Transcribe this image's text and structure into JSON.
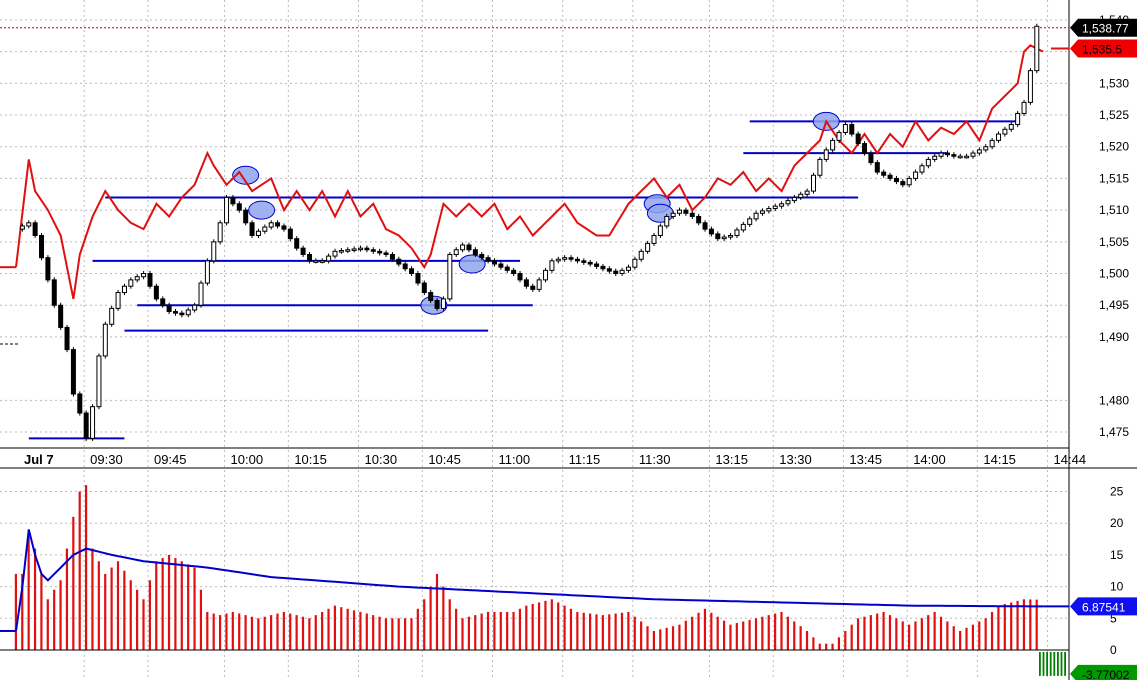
{
  "chart_data": [
    {
      "type": "candlestick",
      "x_labels": [
        "Jul 7",
        "09:30",
        "09:45",
        "10:00",
        "10:15",
        "10:30",
        "10:45",
        "11:00",
        "11:15",
        "11:30",
        "13:15",
        "13:30",
        "13:45",
        "14:00",
        "14:15",
        "14:44"
      ],
      "y_ticks": [
        "1,475",
        "1,480",
        "1,490",
        "1,495",
        "1,500",
        "1,505",
        "1,510",
        "1,515",
        "1,520",
        "1,525",
        "1,530",
        "1,535",
        "1,540"
      ],
      "ylim": [
        1471,
        1540.5
      ],
      "grid": true,
      "price_series_anchors": [
        [
          0,
          1507
        ],
        [
          2,
          1508
        ],
        [
          3,
          1506
        ],
        [
          5,
          1499
        ],
        [
          6,
          1495
        ],
        [
          8,
          1488
        ],
        [
          9,
          1481
        ],
        [
          10,
          1478
        ],
        [
          11,
          1474
        ],
        [
          12,
          1479
        ],
        [
          13,
          1487
        ],
        [
          14,
          1492
        ],
        [
          16,
          1497
        ],
        [
          18,
          1499
        ],
        [
          20,
          1500
        ],
        [
          22,
          1496
        ],
        [
          24,
          1494
        ],
        [
          26,
          1493.5
        ],
        [
          28,
          1495
        ],
        [
          30,
          1502
        ],
        [
          32,
          1508
        ],
        [
          33,
          1512
        ],
        [
          35,
          1510
        ],
        [
          37,
          1506
        ],
        [
          40,
          1508
        ],
        [
          42,
          1507
        ],
        [
          44,
          1504
        ],
        [
          46,
          1502
        ],
        [
          48,
          1502
        ],
        [
          50,
          1503.5
        ],
        [
          54,
          1504
        ],
        [
          58,
          1503
        ],
        [
          62,
          1500
        ],
        [
          64,
          1497
        ],
        [
          66,
          1494.5
        ],
        [
          67,
          1496
        ],
        [
          68,
          1503
        ],
        [
          70,
          1504.5
        ],
        [
          72,
          1503
        ],
        [
          74,
          1502
        ],
        [
          76,
          1501
        ],
        [
          78,
          1500
        ],
        [
          80,
          1498
        ],
        [
          81,
          1497.5
        ],
        [
          82,
          1499
        ],
        [
          84,
          1502
        ],
        [
          86,
          1502.5
        ],
        [
          90,
          1501.5
        ],
        [
          94,
          1500
        ],
        [
          96,
          1501
        ],
        [
          100,
          1506
        ],
        [
          102,
          1509
        ],
        [
          104,
          1510
        ],
        [
          106,
          1509
        ],
        [
          108,
          1507
        ],
        [
          110,
          1505.5
        ],
        [
          112,
          1506
        ],
        [
          116,
          1509.5
        ],
        [
          120,
          1511
        ],
        [
          124,
          1513
        ],
        [
          126,
          1518
        ],
        [
          128,
          1521
        ],
        [
          130,
          1523.5
        ],
        [
          131,
          1522
        ],
        [
          133,
          1519
        ],
        [
          135,
          1516
        ],
        [
          137,
          1515
        ],
        [
          139,
          1514
        ],
        [
          141,
          1516
        ],
        [
          143,
          1518
        ],
        [
          145,
          1519
        ],
        [
          147,
          1518.5
        ],
        [
          149,
          1518.5
        ],
        [
          152,
          1520
        ],
        [
          154,
          1522
        ],
        [
          156,
          1523.5
        ],
        [
          158,
          1527
        ],
        [
          159,
          1532
        ],
        [
          160,
          1539
        ]
      ],
      "red_series_anchors": [
        [
          0,
          1501
        ],
        [
          2,
          1518
        ],
        [
          3,
          1513
        ],
        [
          5,
          1510
        ],
        [
          7,
          1506
        ],
        [
          9,
          1496
        ],
        [
          10,
          1503
        ],
        [
          12,
          1509
        ],
        [
          14,
          1513
        ],
        [
          16,
          1510
        ],
        [
          18,
          1508
        ],
        [
          20,
          1507
        ],
        [
          22,
          1511
        ],
        [
          24,
          1509
        ],
        [
          26,
          1512
        ],
        [
          28,
          1514
        ],
        [
          30,
          1519
        ],
        [
          31,
          1517
        ],
        [
          33,
          1514
        ],
        [
          35,
          1516
        ],
        [
          37,
          1513
        ],
        [
          40,
          1515
        ],
        [
          42,
          1510
        ],
        [
          44,
          1513
        ],
        [
          46,
          1510
        ],
        [
          48,
          1513
        ],
        [
          50,
          1509
        ],
        [
          52,
          1513
        ],
        [
          54,
          1509
        ],
        [
          56,
          1511
        ],
        [
          58,
          1507
        ],
        [
          60,
          1506
        ],
        [
          62,
          1504
        ],
        [
          64,
          1501
        ],
        [
          65,
          1503
        ],
        [
          67,
          1511
        ],
        [
          69,
          1509
        ],
        [
          71,
          1511
        ],
        [
          73,
          1509
        ],
        [
          75,
          1511
        ],
        [
          77,
          1507
        ],
        [
          79,
          1509
        ],
        [
          81,
          1506
        ],
        [
          82,
          1507
        ],
        [
          84,
          1509
        ],
        [
          86,
          1511
        ],
        [
          88,
          1508
        ],
        [
          91,
          1506
        ],
        [
          93,
          1506
        ],
        [
          96,
          1511
        ],
        [
          98,
          1513
        ],
        [
          100,
          1515
        ],
        [
          102,
          1512
        ],
        [
          104,
          1514
        ],
        [
          106,
          1510
        ],
        [
          108,
          1512
        ],
        [
          110,
          1515
        ],
        [
          112,
          1514
        ],
        [
          114,
          1516
        ],
        [
          116,
          1513
        ],
        [
          118,
          1515
        ],
        [
          120,
          1513
        ],
        [
          122,
          1517
        ],
        [
          124,
          1519
        ],
        [
          126,
          1521
        ],
        [
          127,
          1524
        ],
        [
          129,
          1521
        ],
        [
          131,
          1519
        ],
        [
          133,
          1522
        ],
        [
          135,
          1519
        ],
        [
          137,
          1522
        ],
        [
          139,
          1520
        ],
        [
          141,
          1524
        ],
        [
          143,
          1521
        ],
        [
          145,
          1523
        ],
        [
          147,
          1522
        ],
        [
          149,
          1524
        ],
        [
          151,
          1521
        ],
        [
          153,
          1526
        ],
        [
          155,
          1528
        ],
        [
          157,
          1530
        ],
        [
          158,
          1535
        ],
        [
          159,
          1536
        ],
        [
          161,
          1535
        ]
      ],
      "horizontal_levels": [
        {
          "y": 1474,
          "x_from": 2,
          "x_to": 17
        },
        {
          "y": 1491,
          "x_from": 17,
          "x_to": 74
        },
        {
          "y": 1495,
          "x_from": 19,
          "x_to": 81
        },
        {
          "y": 1502,
          "x_from": 12,
          "x_to": 79
        },
        {
          "y": 1512,
          "x_from": 14,
          "x_to": 132
        },
        {
          "y": 1519,
          "x_from": 114,
          "x_to": 146
        },
        {
          "y": 1524,
          "x_from": 115,
          "x_to": 157
        }
      ],
      "highlight_ellipses": [
        {
          "x": 36,
          "y": 1515.5
        },
        {
          "x": 38.5,
          "y": 1510
        },
        {
          "x": 65.5,
          "y": 1495
        },
        {
          "x": 71.5,
          "y": 1501.5
        },
        {
          "x": 100.5,
          "y": 1511
        },
        {
          "x": 127,
          "y": 1524
        },
        {
          "x": 101,
          "y": 1509.5
        }
      ],
      "last_price_label": "1,538.77",
      "last_price": 1538.77,
      "red_series_label": "1,535.5",
      "red_series_last": 1535.5,
      "colors": {
        "price": "#000000",
        "red_series": "#e01010",
        "levels": "#0000cc",
        "ellipse_fill": "#8fa5ec",
        "ellipse_stroke": "#0000cc",
        "grid": "#bbbbbb"
      }
    },
    {
      "type": "bar",
      "y_ticks": [
        "0",
        "5",
        "10",
        "15",
        "20",
        "25"
      ],
      "ylim": [
        0,
        27.5
      ],
      "bar_anchors": [
        [
          0,
          12
        ],
        [
          1,
          12
        ],
        [
          2,
          19
        ],
        [
          3,
          16
        ],
        [
          5,
          8
        ],
        [
          7,
          11
        ],
        [
          9,
          21
        ],
        [
          10,
          25
        ],
        [
          11,
          26
        ],
        [
          12,
          16
        ],
        [
          14,
          12
        ],
        [
          16,
          14
        ],
        [
          18,
          11
        ],
        [
          20,
          8
        ],
        [
          22,
          14
        ],
        [
          24,
          15
        ],
        [
          26,
          14
        ],
        [
          28,
          13
        ],
        [
          30,
          6
        ],
        [
          32,
          5.5
        ],
        [
          34,
          6
        ],
        [
          38,
          5
        ],
        [
          42,
          6
        ],
        [
          46,
          5
        ],
        [
          50,
          7
        ],
        [
          54,
          6
        ],
        [
          58,
          5
        ],
        [
          62,
          5
        ],
        [
          64,
          8
        ],
        [
          66,
          12
        ],
        [
          68,
          8
        ],
        [
          70,
          5
        ],
        [
          74,
          6
        ],
        [
          78,
          6
        ],
        [
          80,
          7
        ],
        [
          84,
          8
        ],
        [
          88,
          6
        ],
        [
          92,
          5.5
        ],
        [
          96,
          6
        ],
        [
          100,
          3
        ],
        [
          104,
          4
        ],
        [
          108,
          6.5
        ],
        [
          112,
          4
        ],
        [
          116,
          5
        ],
        [
          120,
          6
        ],
        [
          124,
          3
        ],
        [
          126,
          1
        ],
        [
          128,
          1
        ],
        [
          130,
          3
        ],
        [
          132,
          5
        ],
        [
          136,
          6
        ],
        [
          140,
          4
        ],
        [
          144,
          6
        ],
        [
          148,
          3
        ],
        [
          152,
          5
        ],
        [
          154,
          7
        ],
        [
          156,
          7.5
        ],
        [
          158,
          8
        ]
      ],
      "moving_average_anchors": [
        [
          0,
          3
        ],
        [
          1,
          10
        ],
        [
          2,
          19
        ],
        [
          3,
          15
        ],
        [
          4,
          12
        ],
        [
          5,
          11
        ],
        [
          7,
          13
        ],
        [
          9,
          15
        ],
        [
          11,
          16
        ],
        [
          15,
          15
        ],
        [
          20,
          14
        ],
        [
          25,
          13.5
        ],
        [
          30,
          13
        ],
        [
          40,
          11.5
        ],
        [
          60,
          10
        ],
        [
          80,
          9
        ],
        [
          100,
          8
        ],
        [
          120,
          7.5
        ],
        [
          140,
          7
        ],
        [
          161,
          6.87
        ]
      ],
      "negative_block_value": -3.77,
      "last_value_label": "6.87541",
      "last_value": 6.87541,
      "negative_label": "-3.77002",
      "colors": {
        "bars": "#e01010",
        "moving_average": "#0000cc",
        "negative_block": "#008000"
      }
    }
  ]
}
